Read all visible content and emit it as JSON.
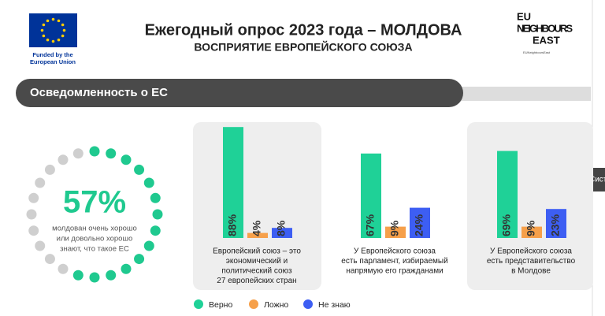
{
  "header": {
    "funded": [
      "Funded by the",
      "European Union"
    ],
    "title": "Ежегодный опрос 2023 года – МОЛДОВА",
    "subtitle": "ВОСПРИЯТИЕ ЕВРОПЕЙСКОГО СОЮЗА",
    "logo": [
      "EU",
      "NEIGHBOURS",
      "EAST"
    ],
    "handle": "EUNeighboursEast"
  },
  "section": "Осведомленность о ЕС",
  "side_tab": "Сист",
  "awareness": {
    "value": 57,
    "value_label": "57%",
    "color": "#1fc98f",
    "text": [
      "молдован очень хорошо",
      "или довольно хорошо",
      "знают, что такое ЕС"
    ]
  },
  "legend": [
    {
      "name": "Верно",
      "color": "#1fd197"
    },
    {
      "name": "Ложно",
      "color": "#f6a04a"
    },
    {
      "name": "Не знаю",
      "color": "#3d5ef3"
    }
  ],
  "chart_data": [
    {
      "type": "bar",
      "ylim": [
        0,
        100
      ],
      "values": [
        88,
        4,
        8
      ],
      "value_labels": [
        "88%",
        "4%",
        "8%"
      ],
      "caption": [
        "Европейский союз – это",
        "экономический и",
        "политический союз",
        "27 европейских стран"
      ]
    },
    {
      "type": "bar",
      "ylim": [
        0,
        100
      ],
      "values": [
        67,
        9,
        24
      ],
      "value_labels": [
        "67%",
        "9%",
        "24%"
      ],
      "caption": [
        "У Европейского союза",
        "есть парламент, избираемый",
        "напрямую его гражданами"
      ]
    },
    {
      "type": "bar",
      "ylim": [
        0,
        100
      ],
      "values": [
        69,
        9,
        23
      ],
      "value_labels": [
        "69%",
        "9%",
        "23%"
      ],
      "caption": [
        "У Европейского союза",
        "есть представительство",
        "в Молдове"
      ]
    }
  ]
}
